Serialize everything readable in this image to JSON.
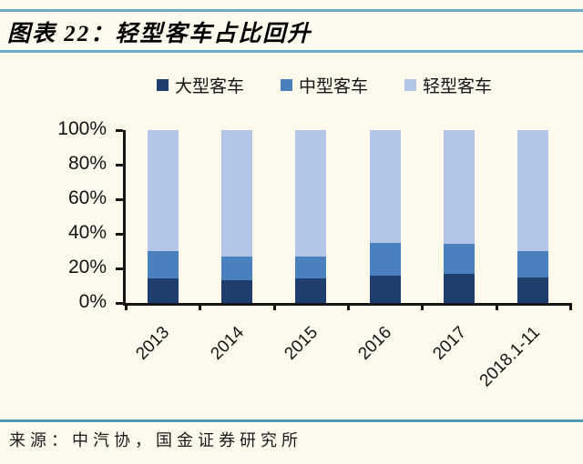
{
  "header": {
    "chart_number_title": "图表 22：轻型客车占比回升"
  },
  "colors": {
    "background": "#FDF9EC",
    "divider": "#6FAAC8",
    "footer_divider": "#4E9AB4",
    "axis": "#151515",
    "text": "#141414"
  },
  "chart_data": {
    "type": "bar",
    "stacked": true,
    "title": "轻型客车占比回升",
    "categories": [
      "2013",
      "2014",
      "2015",
      "2016",
      "2017",
      "2018.1-11"
    ],
    "series": [
      {
        "name": "大型客车",
        "slug": "large-bus",
        "color": "#1F3E6E",
        "values": [
          14,
          13,
          14,
          16,
          17,
          15
        ]
      },
      {
        "name": "中型客车",
        "slug": "medium-bus",
        "color": "#4A80BE",
        "values": [
          16,
          14,
          13,
          19,
          17,
          15
        ]
      },
      {
        "name": "轻型客车",
        "slug": "light-bus",
        "color": "#B3C6E7",
        "values": [
          70,
          73,
          73,
          65,
          66,
          70
        ]
      }
    ],
    "y_ticks": [
      "100%",
      "80%",
      "60%",
      "40%",
      "20%",
      "0%"
    ],
    "ylim": [
      0,
      100
    ],
    "unit": "%",
    "legend_position": "top",
    "grid": false,
    "xlabel": "",
    "ylabel": ""
  },
  "footer": {
    "source": "来源：中汽协，国金证券研究所"
  }
}
